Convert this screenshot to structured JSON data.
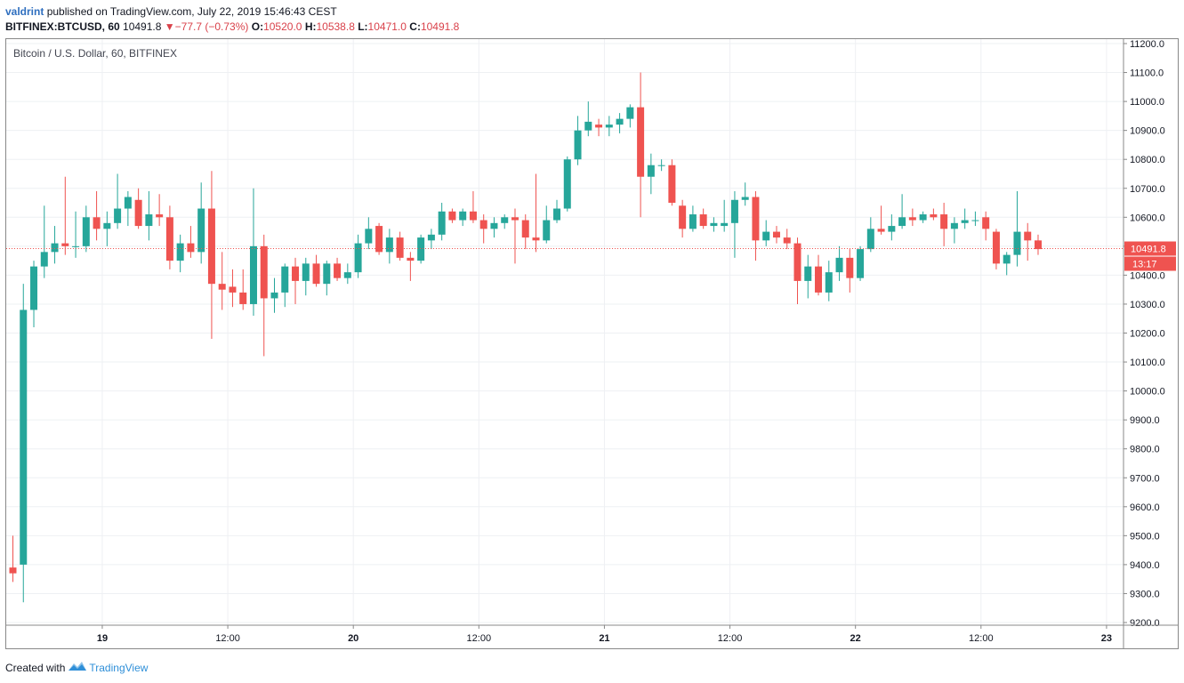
{
  "header": {
    "user": "valdrint",
    "published": "published on TradingView.com, July 22, 2019 15:46:43 CEST"
  },
  "symbol": {
    "name": "BITFINEX:BTCUSD, 60",
    "price": "10491.8",
    "change": "−77.7 (−0.73%)",
    "o_label": "O:",
    "o": "10520.0",
    "h_label": "H:",
    "h": "10538.8",
    "l_label": "L:",
    "l": "10471.0",
    "c_label": "C:",
    "c": "10491.8"
  },
  "legend": "Bitcoin / U.S. Dollar, 60, BITFINEX",
  "last_price_label": "10491.8",
  "countdown_label": "13:17",
  "footer": {
    "created": "Created with",
    "brand": "TradingView"
  },
  "colors": {
    "up": "#26a69a",
    "down": "#ef5350",
    "grid": "#eef0f3",
    "axis": "#888888",
    "last": "#ef5350"
  },
  "chart_data": {
    "type": "candlestick",
    "y_axis": {
      "ylim": [
        9200,
        11200
      ],
      "ticks": [
        9200,
        9300,
        9400,
        9500,
        9600,
        9700,
        9800,
        9900,
        10000,
        10100,
        10200,
        10300,
        10400,
        10500,
        10600,
        10700,
        10800,
        10900,
        11000,
        11100,
        11200
      ],
      "position": "right"
    },
    "x_axis": {
      "ticks": [
        "19",
        "12:00",
        "20",
        "12:00",
        "21",
        "12:00",
        "22",
        "12:00",
        "23"
      ],
      "tick_bars": [
        9,
        21,
        33,
        45,
        57,
        69,
        81,
        93,
        105
      ]
    },
    "last_price": 10491.8,
    "grid": true,
    "candles": [
      {
        "o": 9390,
        "h": 9500,
        "l": 9340,
        "c": 9370
      },
      {
        "o": 9400,
        "h": 10370,
        "l": 9270,
        "c": 10280
      },
      {
        "o": 10280,
        "h": 10450,
        "l": 10220,
        "c": 10430
      },
      {
        "o": 10430,
        "h": 10640,
        "l": 10390,
        "c": 10480
      },
      {
        "o": 10480,
        "h": 10570,
        "l": 10440,
        "c": 10510
      },
      {
        "o": 10510,
        "h": 10740,
        "l": 10470,
        "c": 10500
      },
      {
        "o": 10500,
        "h": 10620,
        "l": 10460,
        "c": 10500
      },
      {
        "o": 10500,
        "h": 10640,
        "l": 10480,
        "c": 10600
      },
      {
        "o": 10600,
        "h": 10690,
        "l": 10520,
        "c": 10560
      },
      {
        "o": 10560,
        "h": 10620,
        "l": 10500,
        "c": 10580
      },
      {
        "o": 10580,
        "h": 10750,
        "l": 10560,
        "c": 10630
      },
      {
        "o": 10630,
        "h": 10690,
        "l": 10570,
        "c": 10670
      },
      {
        "o": 10660,
        "h": 10700,
        "l": 10560,
        "c": 10570
      },
      {
        "o": 10570,
        "h": 10690,
        "l": 10520,
        "c": 10610
      },
      {
        "o": 10610,
        "h": 10680,
        "l": 10570,
        "c": 10600
      },
      {
        "o": 10600,
        "h": 10640,
        "l": 10420,
        "c": 10450
      },
      {
        "o": 10450,
        "h": 10540,
        "l": 10410,
        "c": 10510
      },
      {
        "o": 10510,
        "h": 10570,
        "l": 10460,
        "c": 10480
      },
      {
        "o": 10480,
        "h": 10720,
        "l": 10440,
        "c": 10630
      },
      {
        "o": 10630,
        "h": 10760,
        "l": 10180,
        "c": 10370
      },
      {
        "o": 10370,
        "h": 10480,
        "l": 10280,
        "c": 10350
      },
      {
        "o": 10360,
        "h": 10420,
        "l": 10290,
        "c": 10340
      },
      {
        "o": 10340,
        "h": 10420,
        "l": 10280,
        "c": 10300
      },
      {
        "o": 10300,
        "h": 10700,
        "l": 10260,
        "c": 10500
      },
      {
        "o": 10500,
        "h": 10540,
        "l": 10120,
        "c": 10320
      },
      {
        "o": 10320,
        "h": 10390,
        "l": 10270,
        "c": 10340
      },
      {
        "o": 10340,
        "h": 10440,
        "l": 10290,
        "c": 10430
      },
      {
        "o": 10430,
        "h": 10460,
        "l": 10300,
        "c": 10380
      },
      {
        "o": 10380,
        "h": 10460,
        "l": 10330,
        "c": 10440
      },
      {
        "o": 10440,
        "h": 10470,
        "l": 10360,
        "c": 10370
      },
      {
        "o": 10370,
        "h": 10450,
        "l": 10330,
        "c": 10440
      },
      {
        "o": 10440,
        "h": 10460,
        "l": 10380,
        "c": 10390
      },
      {
        "o": 10390,
        "h": 10440,
        "l": 10370,
        "c": 10410
      },
      {
        "o": 10410,
        "h": 10540,
        "l": 10390,
        "c": 10510
      },
      {
        "o": 10510,
        "h": 10600,
        "l": 10490,
        "c": 10560
      },
      {
        "o": 10570,
        "h": 10580,
        "l": 10470,
        "c": 10480
      },
      {
        "o": 10480,
        "h": 10560,
        "l": 10440,
        "c": 10530
      },
      {
        "o": 10530,
        "h": 10550,
        "l": 10450,
        "c": 10460
      },
      {
        "o": 10460,
        "h": 10480,
        "l": 10380,
        "c": 10450
      },
      {
        "o": 10450,
        "h": 10540,
        "l": 10440,
        "c": 10530
      },
      {
        "o": 10520,
        "h": 10560,
        "l": 10490,
        "c": 10540
      },
      {
        "o": 10540,
        "h": 10650,
        "l": 10520,
        "c": 10620
      },
      {
        "o": 10620,
        "h": 10630,
        "l": 10580,
        "c": 10590
      },
      {
        "o": 10590,
        "h": 10630,
        "l": 10570,
        "c": 10620
      },
      {
        "o": 10620,
        "h": 10690,
        "l": 10580,
        "c": 10590
      },
      {
        "o": 10590,
        "h": 10610,
        "l": 10510,
        "c": 10560
      },
      {
        "o": 10560,
        "h": 10600,
        "l": 10530,
        "c": 10580
      },
      {
        "o": 10580,
        "h": 10610,
        "l": 10560,
        "c": 10600
      },
      {
        "o": 10600,
        "h": 10630,
        "l": 10440,
        "c": 10590
      },
      {
        "o": 10590,
        "h": 10610,
        "l": 10490,
        "c": 10530
      },
      {
        "o": 10530,
        "h": 10750,
        "l": 10480,
        "c": 10520
      },
      {
        "o": 10520,
        "h": 10640,
        "l": 10510,
        "c": 10590
      },
      {
        "o": 10590,
        "h": 10660,
        "l": 10580,
        "c": 10630
      },
      {
        "o": 10630,
        "h": 10810,
        "l": 10620,
        "c": 10800
      },
      {
        "o": 10800,
        "h": 10950,
        "l": 10780,
        "c": 10900
      },
      {
        "o": 10900,
        "h": 11000,
        "l": 10880,
        "c": 10930
      },
      {
        "o": 10920,
        "h": 10940,
        "l": 10880,
        "c": 10910
      },
      {
        "o": 10910,
        "h": 10950,
        "l": 10880,
        "c": 10920
      },
      {
        "o": 10920,
        "h": 10960,
        "l": 10890,
        "c": 10940
      },
      {
        "o": 10940,
        "h": 10990,
        "l": 10910,
        "c": 10980
      },
      {
        "o": 10980,
        "h": 11100,
        "l": 10600,
        "c": 10740
      },
      {
        "o": 10740,
        "h": 10820,
        "l": 10680,
        "c": 10780
      },
      {
        "o": 10780,
        "h": 10800,
        "l": 10760,
        "c": 10780
      },
      {
        "o": 10780,
        "h": 10800,
        "l": 10640,
        "c": 10650
      },
      {
        "o": 10640,
        "h": 10660,
        "l": 10530,
        "c": 10560
      },
      {
        "o": 10560,
        "h": 10640,
        "l": 10550,
        "c": 10610
      },
      {
        "o": 10610,
        "h": 10630,
        "l": 10560,
        "c": 10570
      },
      {
        "o": 10570,
        "h": 10600,
        "l": 10550,
        "c": 10580
      },
      {
        "o": 10570,
        "h": 10660,
        "l": 10550,
        "c": 10580
      },
      {
        "o": 10580,
        "h": 10690,
        "l": 10460,
        "c": 10660
      },
      {
        "o": 10660,
        "h": 10720,
        "l": 10640,
        "c": 10670
      },
      {
        "o": 10670,
        "h": 10690,
        "l": 10450,
        "c": 10520
      },
      {
        "o": 10520,
        "h": 10590,
        "l": 10500,
        "c": 10550
      },
      {
        "o": 10550,
        "h": 10570,
        "l": 10510,
        "c": 10530
      },
      {
        "o": 10530,
        "h": 10560,
        "l": 10490,
        "c": 10510
      },
      {
        "o": 10510,
        "h": 10530,
        "l": 10300,
        "c": 10380
      },
      {
        "o": 10380,
        "h": 10470,
        "l": 10320,
        "c": 10430
      },
      {
        "o": 10430,
        "h": 10470,
        "l": 10330,
        "c": 10340
      },
      {
        "o": 10340,
        "h": 10450,
        "l": 10310,
        "c": 10410
      },
      {
        "o": 10410,
        "h": 10500,
        "l": 10380,
        "c": 10460
      },
      {
        "o": 10460,
        "h": 10490,
        "l": 10340,
        "c": 10390
      },
      {
        "o": 10390,
        "h": 10500,
        "l": 10380,
        "c": 10490
      },
      {
        "o": 10490,
        "h": 10600,
        "l": 10480,
        "c": 10560
      },
      {
        "o": 10560,
        "h": 10640,
        "l": 10540,
        "c": 10550
      },
      {
        "o": 10550,
        "h": 10610,
        "l": 10520,
        "c": 10570
      },
      {
        "o": 10570,
        "h": 10680,
        "l": 10560,
        "c": 10600
      },
      {
        "o": 10600,
        "h": 10630,
        "l": 10570,
        "c": 10590
      },
      {
        "o": 10590,
        "h": 10620,
        "l": 10580,
        "c": 10610
      },
      {
        "o": 10610,
        "h": 10630,
        "l": 10590,
        "c": 10600
      },
      {
        "o": 10610,
        "h": 10650,
        "l": 10500,
        "c": 10560
      },
      {
        "o": 10560,
        "h": 10600,
        "l": 10510,
        "c": 10580
      },
      {
        "o": 10580,
        "h": 10630,
        "l": 10560,
        "c": 10590
      },
      {
        "o": 10590,
        "h": 10620,
        "l": 10570,
        "c": 10590
      },
      {
        "o": 10600,
        "h": 10620,
        "l": 10520,
        "c": 10560
      },
      {
        "o": 10550,
        "h": 10560,
        "l": 10420,
        "c": 10440
      },
      {
        "o": 10440,
        "h": 10480,
        "l": 10400,
        "c": 10470
      },
      {
        "o": 10470,
        "h": 10690,
        "l": 10430,
        "c": 10550
      },
      {
        "o": 10550,
        "h": 10580,
        "l": 10450,
        "c": 10520
      },
      {
        "o": 10520,
        "h": 10540,
        "l": 10470,
        "c": 10490
      }
    ]
  }
}
